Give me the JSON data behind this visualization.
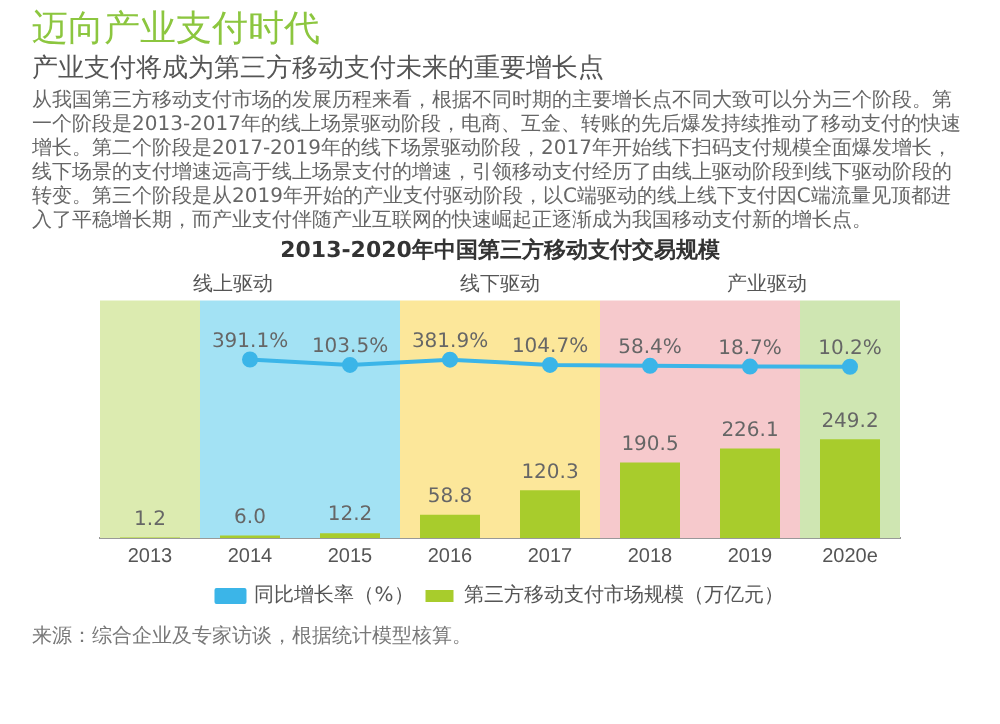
{
  "chart_data": {
    "type": "bar",
    "title": "迈向产业支付时代",
    "subtitle": "产业支付将成为第三方移动支付未来的重要增长点",
    "annotations": [
      "从我国第三方移动支付市场的发展历程来看，根据不同时期的主要增长点不同大致可以分为三个阶段。第一个阶段是2013-2017年的线上场景驱动阶段，电商、互金、转账的先后爆发持续推动了移动支付的快速增长。第二个阶段是2017-2019年的线下场景驱动阶段，2017年开始线下扫码支付规模全面爆发增长，线下场景的支付增速远高于线上场景支付的增速，引领移动支付经历了由线上驱动阶段到线下驱动阶段的转变。第三个阶段是从2019年开始的产业支付驱动阶段，以C端驱动的线上线下支付因C端流量见顶都进入了平稳增长期，而产业支付伴随产业互联网的快速崛起正逐渐成为我国移动支付新的增长点。",
      "2013-2020年中国第三方移动支付交易规模",
      "线上驱动",
      "线下驱动",
      "产业驱动",
      "来源：综合企业及专家访谈，根据统计模型核算。"
    ],
    "categories": [
      "2013",
      "2014",
      "2015",
      "2016",
      "2017",
      "2018",
      "2019",
      "2020e"
    ],
    "series": [
      {
        "name": "第三方移动支付市场规模（万亿元）",
        "color": "#a8cc2c",
        "values": [
          1.2,
          6.0,
          12.2,
          58.8,
          120.3,
          190.5,
          226.1,
          249.2
        ],
        "value_labels": [
          "1.2",
          "6.0",
          "12.2",
          "58.8",
          "120.3",
          "190.5",
          "226.1",
          "249.2"
        ]
      },
      {
        "name": "同比增长率（%）",
        "type": "line",
        "axis": "y2",
        "color": "#3bb5e8",
        "values": [
          null,
          391.1,
          103.5,
          381.9,
          104.7,
          58.4,
          18.7,
          10.2
        ],
        "value_labels": [
          null,
          "391.1%",
          "103.5%",
          "381.9%",
          "104.7%",
          "58.4%",
          "18.7%",
          "10.2%"
        ]
      }
    ],
    "ylim": [
      0,
      600
    ],
    "y2lim": [
      -9000,
      3500
    ],
    "tick_labels": "x",
    "marker": "circle",
    "legend": "bottom",
    "grid": false,
    "bands": [
      {
        "axis": "x",
        "from": "2013",
        "to": "2013",
        "color": "#dcebb0"
      },
      {
        "axis": "x",
        "from": "2014",
        "to": "2015",
        "color": "#a3e2f4"
      },
      {
        "axis": "x",
        "from": "2016",
        "to": "2017",
        "color": "#fce79a"
      },
      {
        "axis": "x",
        "from": "2018",
        "to": "2019",
        "color": "#f6c9cc"
      },
      {
        "axis": "x",
        "from": "2020e",
        "to": "2020e",
        "color": "#cfe6b2"
      }
    ]
  }
}
